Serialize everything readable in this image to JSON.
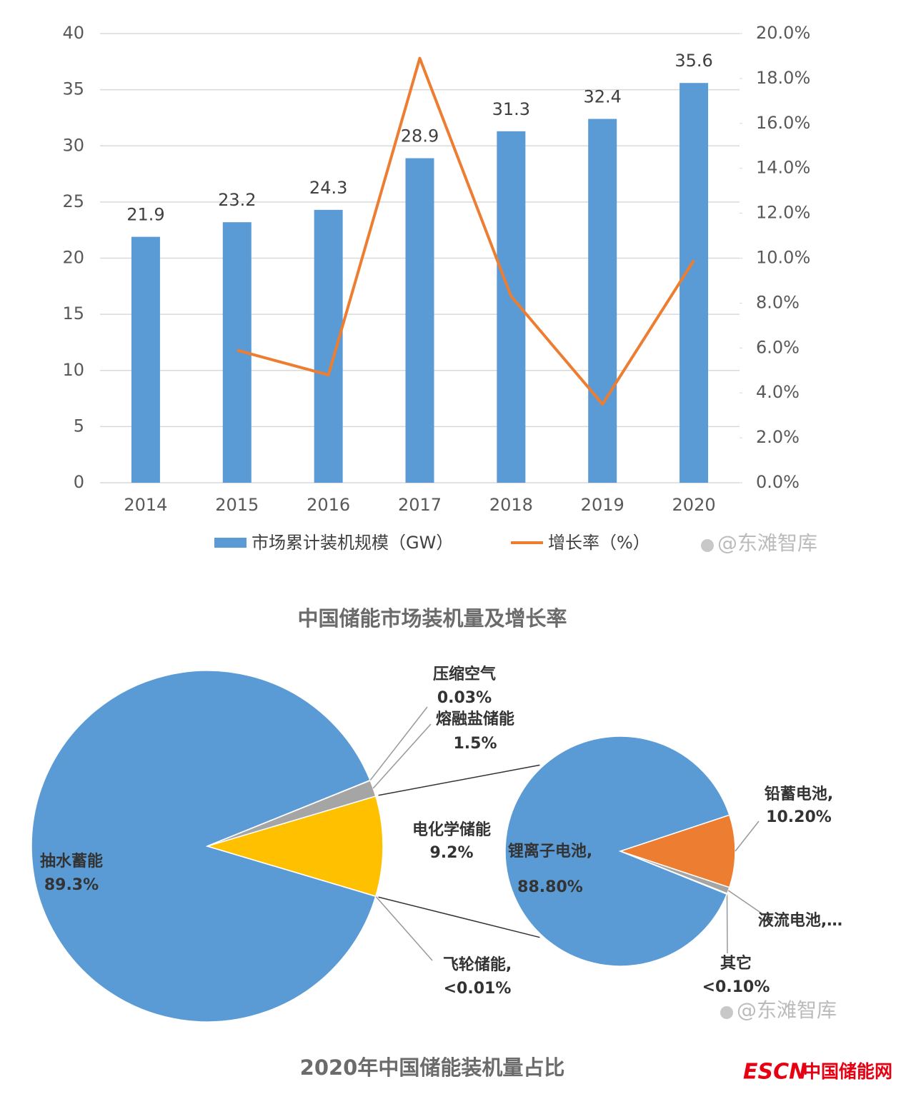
{
  "chart_data": [
    {
      "type": "bar-line",
      "title": "中国储能市场装机量及增长率",
      "watermark": "@东滩智库",
      "categories": [
        "2014",
        "2015",
        "2016",
        "2017",
        "2018",
        "2019",
        "2020"
      ],
      "series": [
        {
          "name": "市场累计装机规模（GW）",
          "color": "#5b9bd5",
          "values": [
            21.9,
            23.2,
            24.3,
            28.9,
            31.3,
            32.4,
            35.6
          ]
        },
        {
          "name": "增长率（%）",
          "color": "#ed7d31",
          "axis": "y2",
          "values": [
            null,
            5.9,
            4.8,
            18.9,
            8.3,
            3.5,
            9.9
          ]
        }
      ],
      "ylim": [
        0,
        40
      ],
      "yticks": [
        0,
        5,
        10,
        15,
        20,
        25,
        30,
        35,
        40
      ],
      "y2lim": [
        0,
        20
      ],
      "y2ticks": [
        {
          "value": 0,
          "label": "0.0%"
        },
        {
          "value": 2,
          "label": "2.0%"
        },
        {
          "value": 4,
          "label": "4.0%"
        },
        {
          "value": 6,
          "label": "6.0%"
        },
        {
          "value": 8,
          "label": "8.0%"
        },
        {
          "value": 10,
          "label": "10.0%"
        },
        {
          "value": 12,
          "label": "12.0%"
        },
        {
          "value": 14,
          "label": "14.0%"
        },
        {
          "value": 16,
          "label": "16.0%"
        },
        {
          "value": 18,
          "label": "18.0%"
        },
        {
          "value": 20,
          "label": "20.0%"
        }
      ],
      "grid": true,
      "legend": "bottom"
    },
    {
      "type": "pie-of-pie",
      "title": "2020年中国储能装机量占比",
      "watermark": "@东滩智库",
      "pie": {
        "categories": [
          "电化学储能",
          "飞轮储能,",
          "抽水蓄能",
          "压缩空气",
          "熔融盐储能"
        ],
        "values": [
          9.2,
          0.01,
          89.3,
          0.03,
          1.5
        ],
        "value_labels": [
          "9.2%",
          "<0.01%",
          "89.3%",
          "0.03%",
          "1.5%"
        ],
        "colors": [
          "#ffc000",
          "#5b9bd5",
          "#5b9bd5",
          "#a5a5a5",
          "#a5a5a5"
        ]
      },
      "sub_pie": {
        "categories": [
          "铅蓄电池,",
          "液流电池,…",
          "其它",
          "锂离子电池,"
        ],
        "values": [
          10.2,
          0.9,
          0.1,
          88.8
        ],
        "value_labels": [
          "10.20%",
          null,
          "<0.10%",
          "88.80%"
        ],
        "colors": [
          "#ed7d31",
          "#a5a5a5",
          "#5b9bd5",
          "#5b9bd5"
        ]
      }
    }
  ],
  "logo": {
    "brand": "ESCN",
    "name": "中国储能网"
  }
}
